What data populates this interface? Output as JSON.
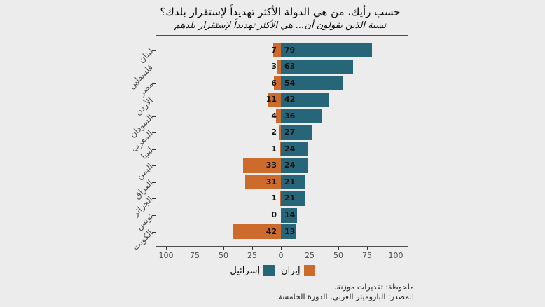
{
  "title": "حسب رأيك، من هي الدولة الأكثر تهديداً لإستقرار بلدك؟",
  "subtitle": "نسبة الذين يقولون أن... هي الأكثر تهديداً لإستقرار بلدهم",
  "caption": {
    "note": "ملحوظة: تقديرات موزنة.",
    "source": "المصدر: الباروميتر العربي, الدورة الخامسة"
  },
  "colors": {
    "iran_orange": "#cc6b2c",
    "israel_teal": "#276579",
    "background": "#ececec",
    "panel_border": "#4d4d4d",
    "axis_text": "#4d4d4d",
    "label_text": "#141414"
  },
  "legend": [
    {
      "label": "إيران",
      "color": "#cc6b2c"
    },
    {
      "label": "إسرائيل",
      "color": "#276579"
    }
  ],
  "chart_data": {
    "type": "bar",
    "orientation": "horizontal-diverging",
    "title": "حسب رأيك، من هي الدولة الأكثر تهديداً لإستقرار بلدك؟",
    "subtitle": "نسبة الذين يقولون أن... هي الأكثر تهديداً لإستقرار بلدهم",
    "categories": [
      "لبنان",
      "فلسطين",
      "مصر",
      "الأردن",
      "السودان",
      "المغرب",
      "ليبيا",
      "اليمن",
      "العراق",
      "الجزائر",
      "تونس",
      "الكويت"
    ],
    "series": [
      {
        "name": "إيران",
        "color": "#cc6b2c",
        "side": "left",
        "values": [
          7,
          3,
          6,
          11,
          4,
          2,
          1,
          33,
          31,
          1,
          0,
          42
        ]
      },
      {
        "name": "إسرائيل",
        "color": "#276579",
        "side": "right",
        "values": [
          79,
          63,
          54,
          42,
          36,
          27,
          24,
          24,
          21,
          21,
          14,
          13
        ]
      }
    ],
    "x_ticks": {
      "labels": [
        "100",
        "75",
        "50",
        "25",
        "0",
        "25",
        "50",
        "75",
        "100"
      ],
      "values": [
        -100,
        -75,
        -50,
        -25,
        0,
        25,
        50,
        75,
        100
      ]
    },
    "xlim": [
      -110,
      110
    ],
    "grid": false,
    "legend_position": "bottom"
  }
}
